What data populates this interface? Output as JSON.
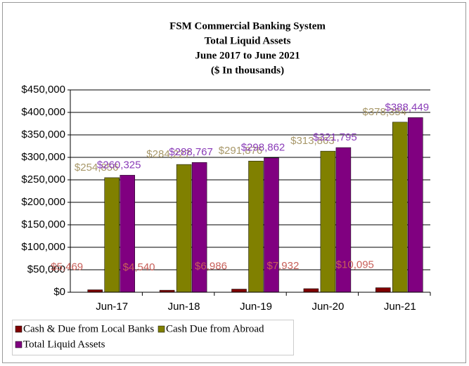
{
  "chart_data": {
    "type": "bar",
    "title": [
      "FSM Commercial Banking System",
      "Total Liquid Assets",
      "June 2017 to June 2021",
      "($ In thousands)"
    ],
    "categories": [
      "Jun-17",
      "Jun-18",
      "Jun-19",
      "Jun-20",
      "Jun-21"
    ],
    "series": [
      {
        "name": "Cash & Due from Local Banks",
        "color": "#800000",
        "label_color": "#c8605a",
        "values": [
          5469,
          4540,
          6986,
          7932,
          10095
        ],
        "value_labels": [
          "$5,469",
          "$4,540",
          "$6,986",
          "$7,932",
          "$10,095"
        ]
      },
      {
        "name": "Cash Due from Abroad",
        "color": "#808000",
        "label_color": "#a8986a",
        "values": [
          254856,
          284227,
          291876,
          313863,
          378354
        ],
        "value_labels": [
          "$254,856",
          "$284,227",
          "$291,876",
          "$313,863",
          "$378,354"
        ]
      },
      {
        "name": "Total Liquid Assets",
        "color": "#800080",
        "label_color": "#8a3cb8",
        "values": [
          260325,
          288767,
          298862,
          321795,
          388449
        ],
        "value_labels": [
          "$260,325",
          "$288,767",
          "$298,862",
          "$321,795",
          "$388,449"
        ]
      }
    ],
    "ylim": [
      0,
      450000
    ],
    "yticks": [
      {
        "value": 0,
        "label": "$0"
      },
      {
        "value": 50000,
        "label": "$50,000"
      },
      {
        "value": 100000,
        "label": "$100,000"
      },
      {
        "value": 150000,
        "label": "$150,000"
      },
      {
        "value": 200000,
        "label": "$200,000"
      },
      {
        "value": 250000,
        "label": "$250,000"
      },
      {
        "value": 300000,
        "label": "$300,000"
      },
      {
        "value": 350000,
        "label": "$350,000"
      },
      {
        "value": 400000,
        "label": "$400,000"
      },
      {
        "value": 450000,
        "label": "$450,000"
      }
    ],
    "grid": true
  }
}
